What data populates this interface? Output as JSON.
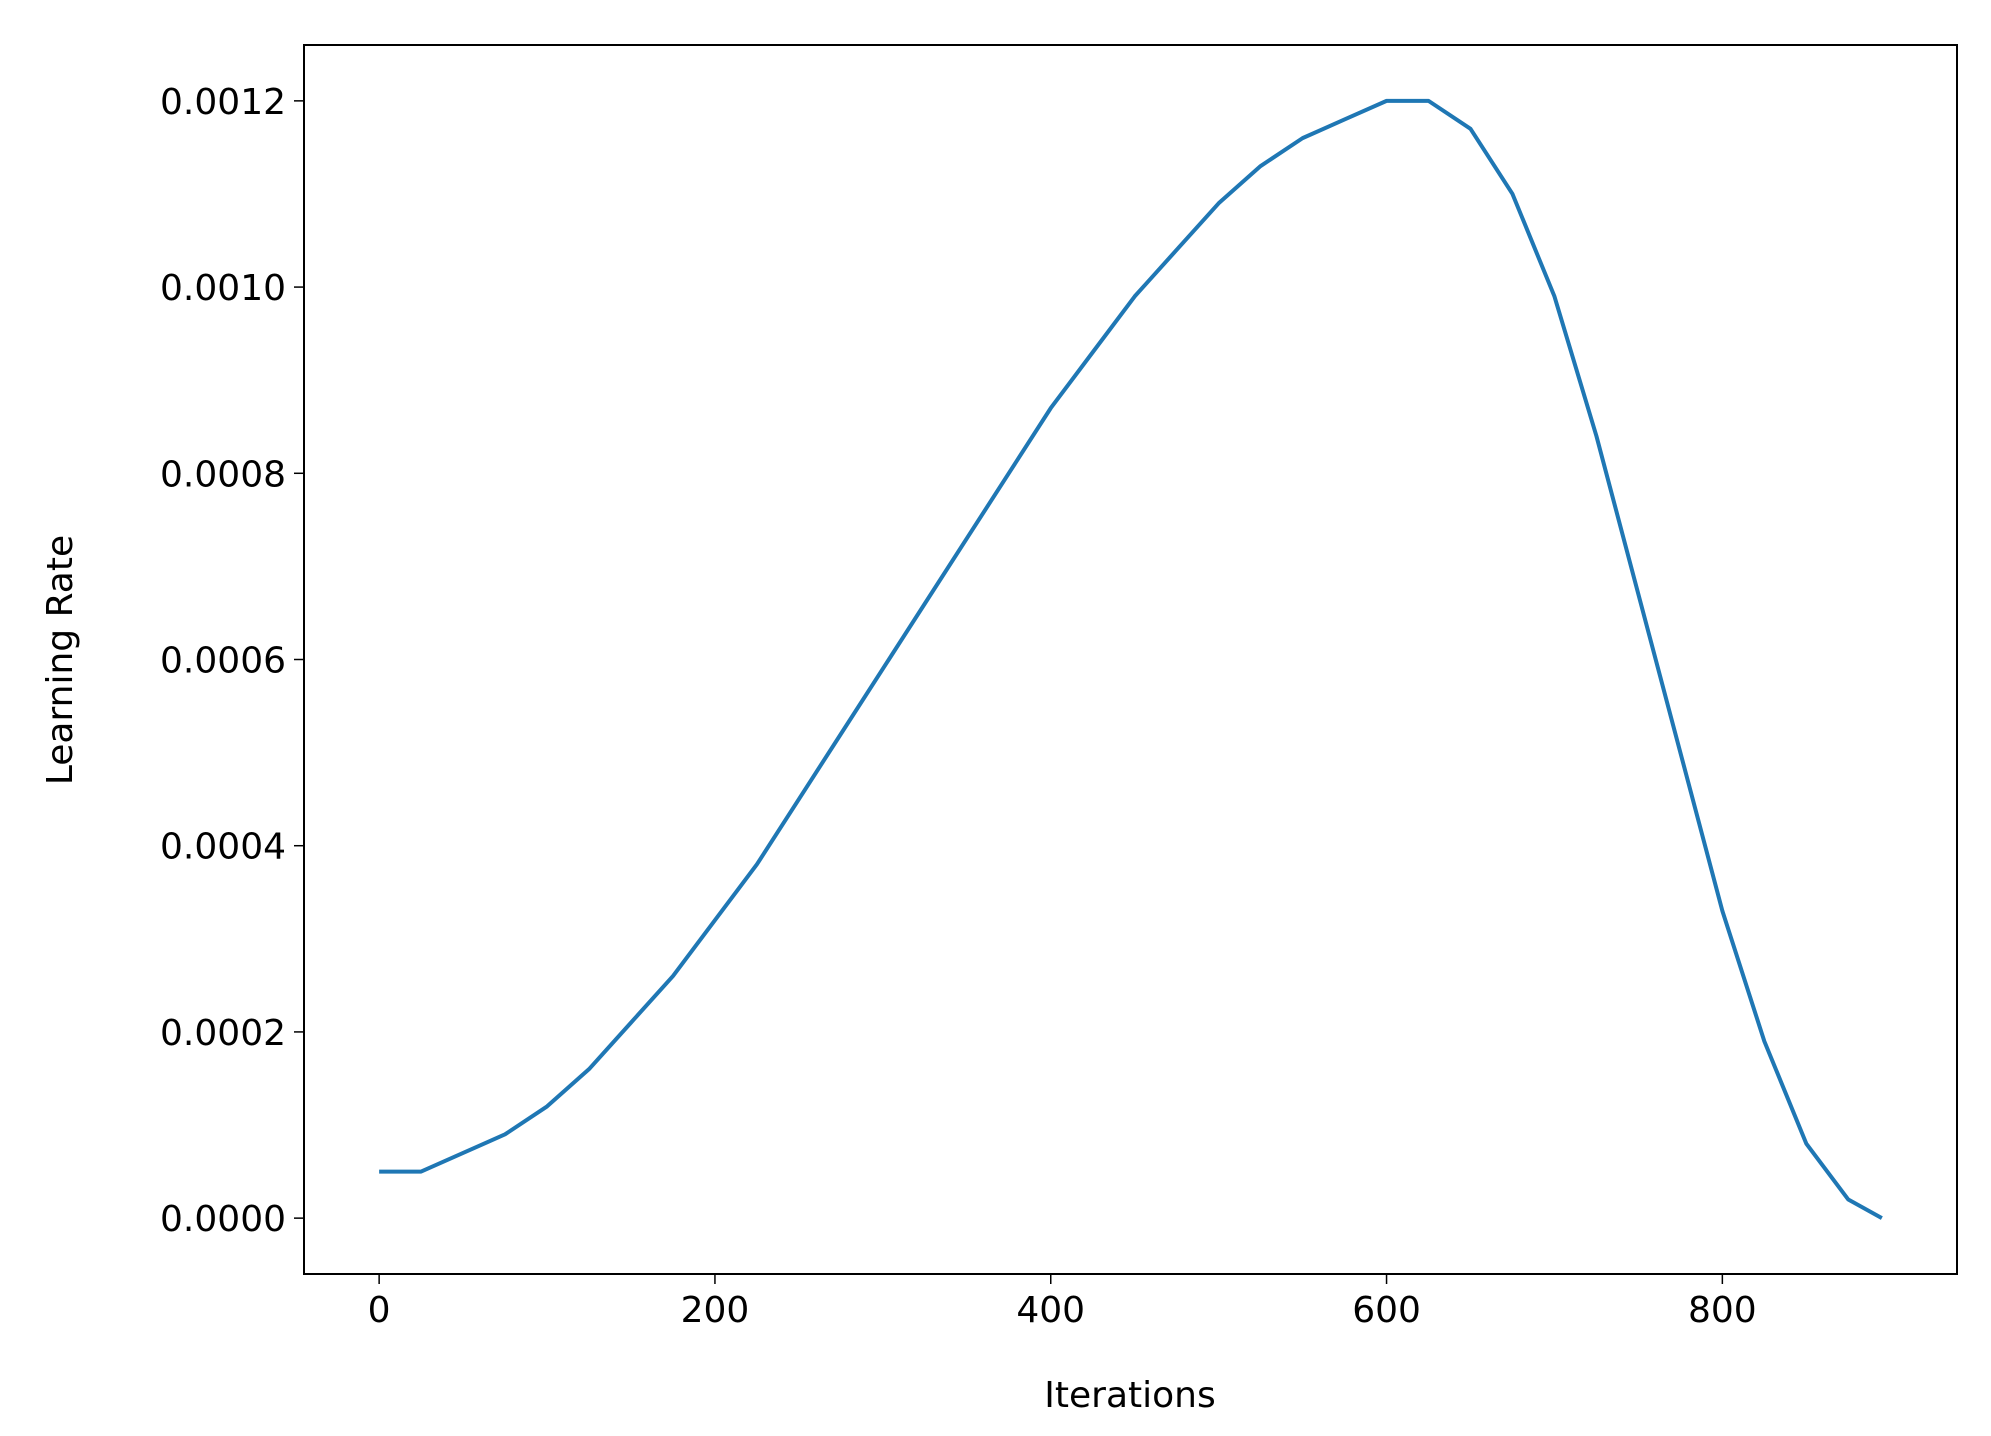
{
  "chart_data": {
    "type": "line",
    "xlabel": "Iterations",
    "ylabel": "Learning Rate",
    "x": [
      0,
      25,
      50,
      75,
      100,
      125,
      150,
      175,
      200,
      225,
      250,
      275,
      300,
      325,
      350,
      375,
      400,
      425,
      450,
      475,
      500,
      525,
      550,
      575,
      600,
      625,
      650,
      675,
      700,
      725,
      750,
      775,
      800,
      825,
      850,
      875,
      895
    ],
    "values": [
      5e-05,
      5e-05,
      7e-05,
      9e-05,
      0.00012,
      0.00016,
      0.00021,
      0.00026,
      0.00032,
      0.00038,
      0.00045,
      0.00052,
      0.00059,
      0.00066,
      0.00073,
      0.0008,
      0.00087,
      0.00093,
      0.00099,
      0.00104,
      0.00109,
      0.00113,
      0.00116,
      0.00118,
      0.0012,
      0.0012,
      0.00117,
      0.0011,
      0.00099,
      0.00084,
      0.00067,
      0.0005,
      0.00033,
      0.00019,
      8e-05,
      2e-05,
      0
    ],
    "color": "#1f77b4",
    "xlim": [
      -44.75,
      939.75
    ],
    "xticks": [
      0,
      200,
      400,
      600,
      800
    ],
    "ylim": [
      -6e-05,
      0.00126
    ],
    "yticks": [
      {
        "value": 0,
        "label": "0.0000"
      },
      {
        "value": 0.0002,
        "label": "0.0002"
      },
      {
        "value": 0.0004,
        "label": "0.0004"
      },
      {
        "value": 0.0006,
        "label": "0.0006"
      },
      {
        "value": 0.0008,
        "label": "0.0008"
      },
      {
        "value": 0.001,
        "label": "0.0010"
      },
      {
        "value": 0.0012,
        "label": "0.0012"
      }
    ]
  }
}
